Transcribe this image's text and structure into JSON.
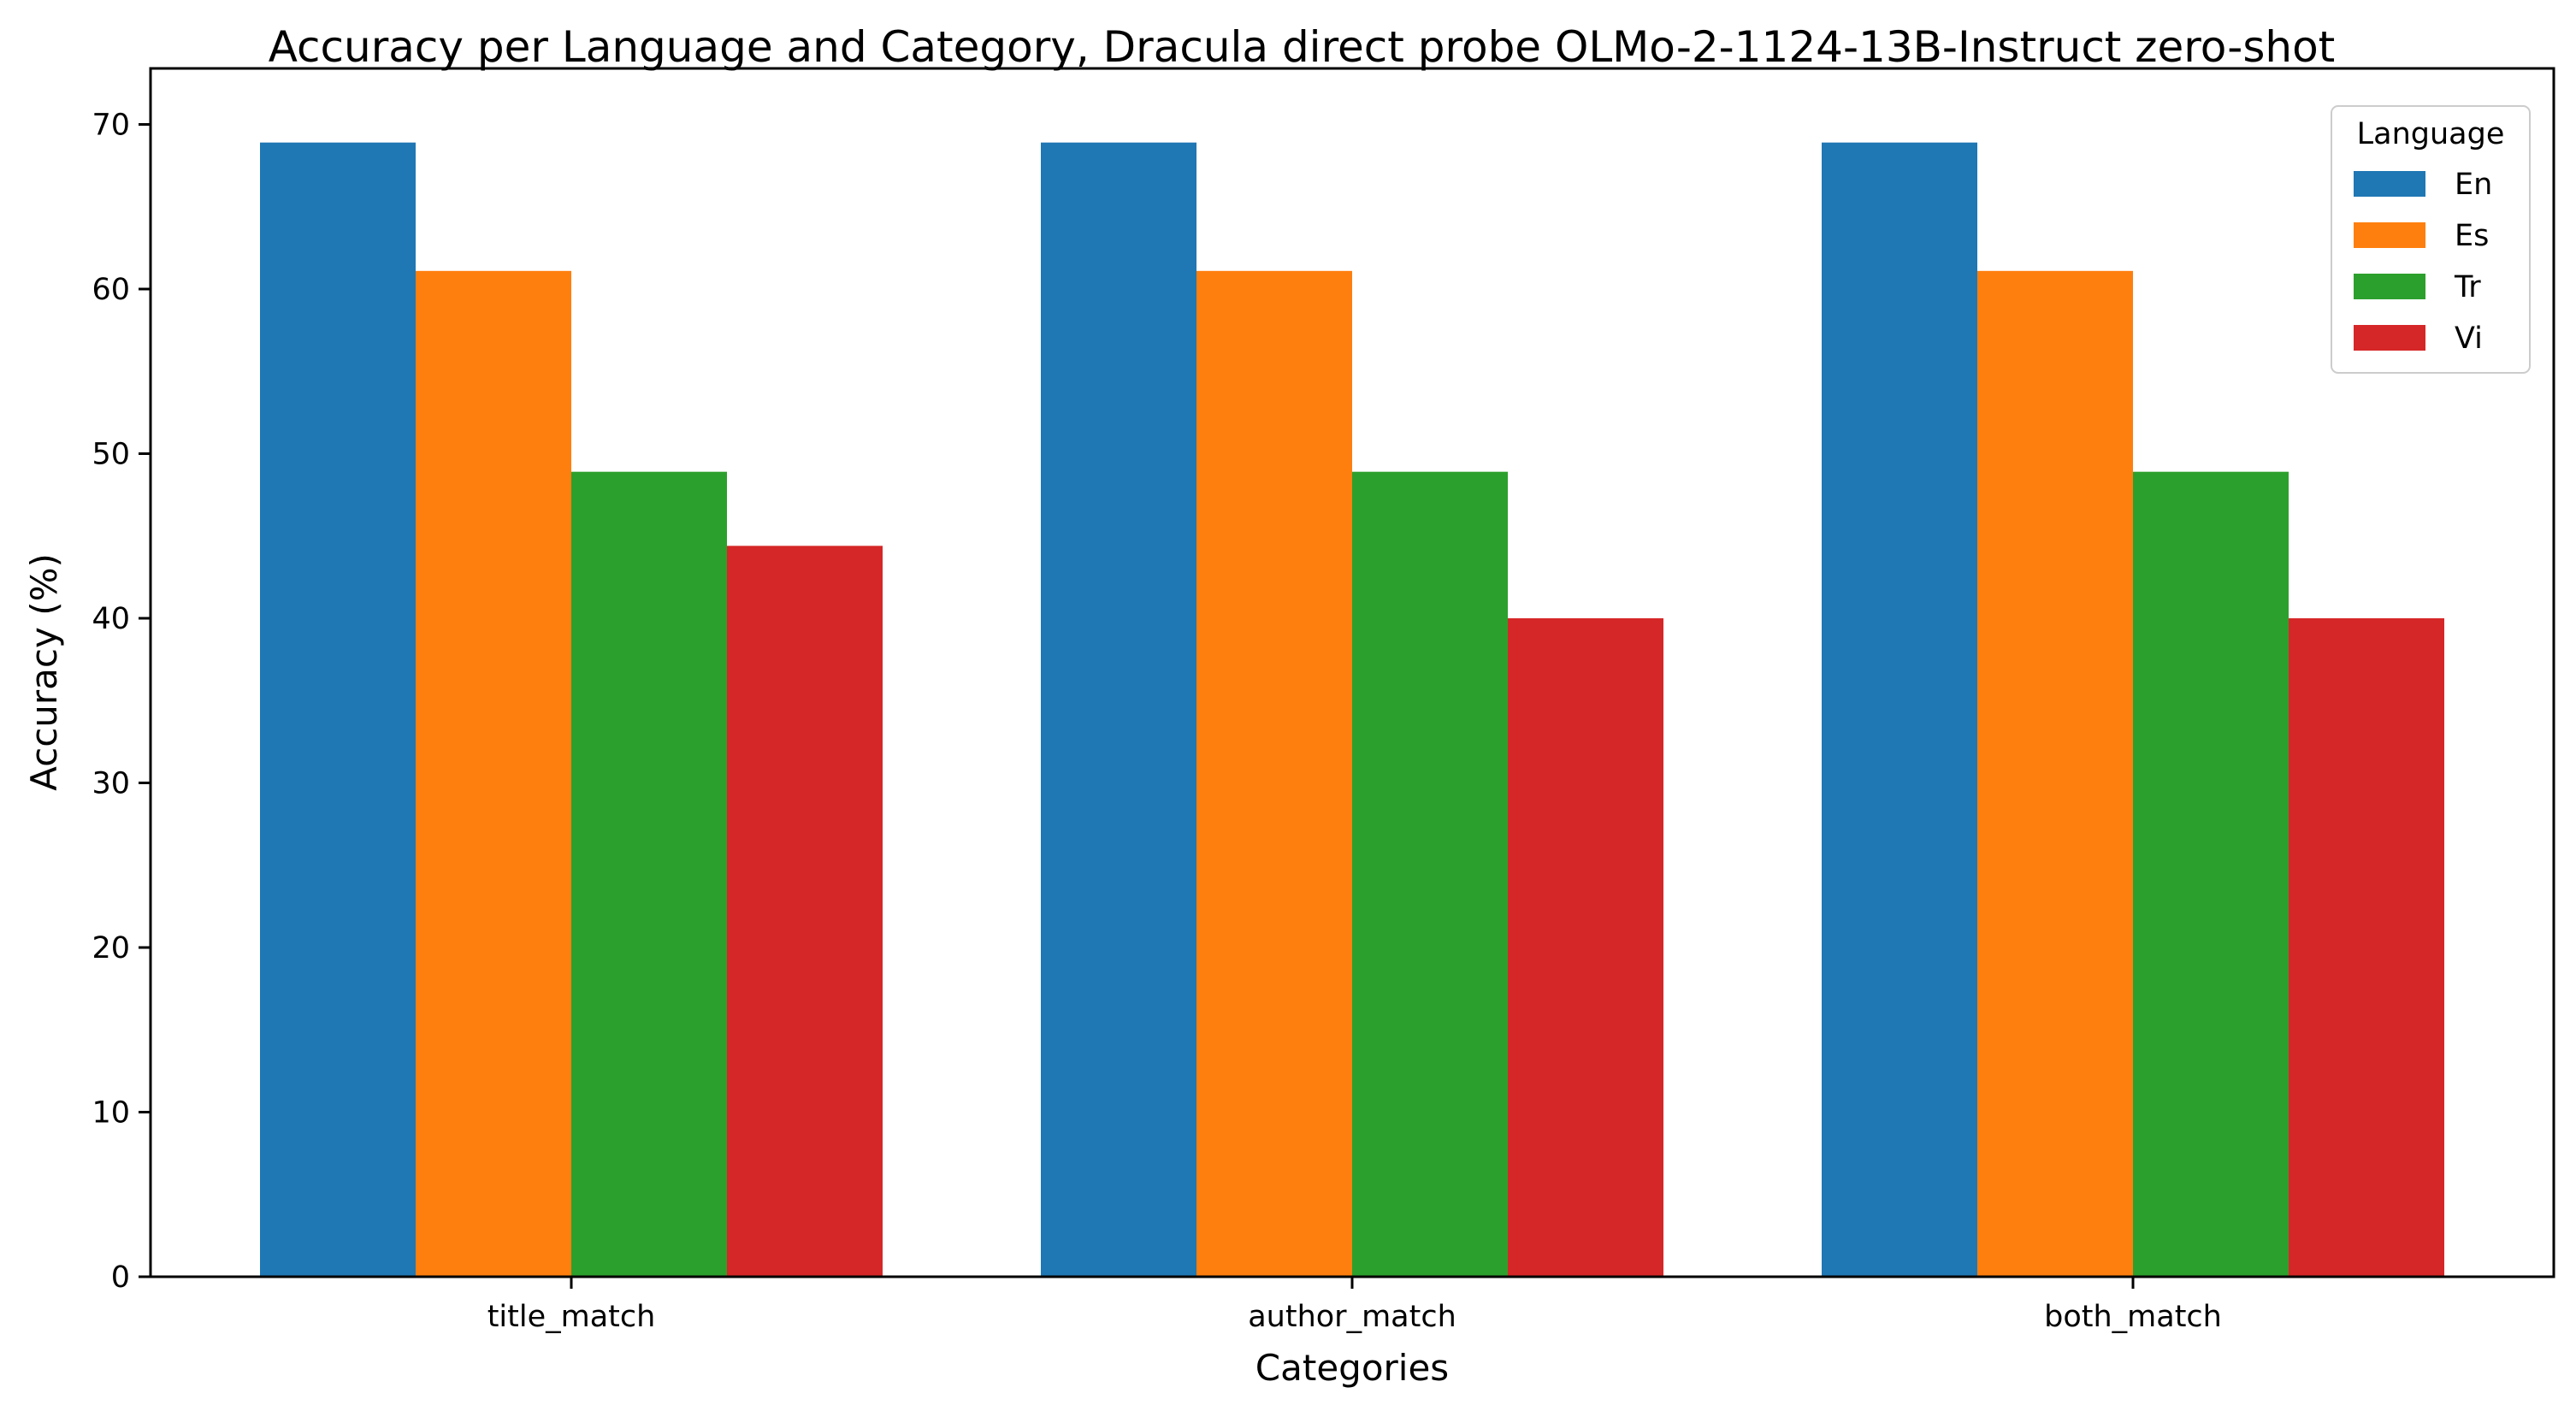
{
  "chart_data": {
    "type": "bar",
    "title": "Accuracy per Language and Category, Dracula direct probe OLMo-2-1124-13B-Instruct zero-shot",
    "xlabel": "Categories",
    "ylabel": "Accuracy (%)",
    "ylim": [
      0,
      72.5
    ],
    "yticks": [
      "0",
      "10",
      "20",
      "30",
      "40",
      "50",
      "60",
      "70"
    ],
    "categories": [
      "title_match",
      "author_match",
      "both_match"
    ],
    "legend": {
      "title": "Language",
      "placement": "top-right"
    },
    "grid": false,
    "series": [
      {
        "name": "En",
        "color": "#1f77b4",
        "values": [
          68.9,
          68.9,
          68.9
        ]
      },
      {
        "name": "Es",
        "color": "#ff7f0e",
        "values": [
          61.1,
          61.1,
          61.1
        ]
      },
      {
        "name": "Tr",
        "color": "#2ca02c",
        "values": [
          48.9,
          48.9,
          48.9
        ]
      },
      {
        "name": "Vi",
        "color": "#d62728",
        "values": [
          44.4,
          40.0,
          40.0
        ]
      }
    ]
  }
}
